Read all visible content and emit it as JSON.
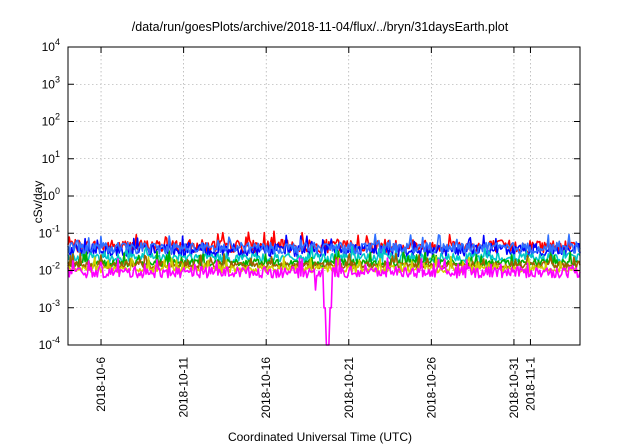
{
  "chart_data": {
    "type": "line",
    "title": "/data/run/goesPlots/archive/2018-11-04/flux/../bryn/31daysEarth.plot",
    "xlabel": "Coordinated Universal Time (UTC)",
    "ylabel": "cSv/day",
    "yscale": "log",
    "ylim": [
      0.0001,
      10000
    ],
    "yticks": [
      {
        "value": 0.0001,
        "base": "10",
        "exp": "-4"
      },
      {
        "value": 0.001,
        "base": "10",
        "exp": "-3"
      },
      {
        "value": 0.01,
        "base": "10",
        "exp": "-2"
      },
      {
        "value": 0.1,
        "base": "10",
        "exp": "-1"
      },
      {
        "value": 1,
        "base": "10",
        "exp": "0"
      },
      {
        "value": 10,
        "base": "10",
        "exp": "1"
      },
      {
        "value": 100,
        "base": "10",
        "exp": "2"
      },
      {
        "value": 1000,
        "base": "10",
        "exp": "3"
      },
      {
        "value": 10000,
        "base": "10",
        "exp": "4"
      }
    ],
    "xlim": [
      "2018-10-04",
      "2018-11-04"
    ],
    "xticks": [
      "2018-10-6",
      "2018-10-11",
      "2018-10-16",
      "2018-10-21",
      "2018-10-26",
      "2018-10-31",
      "2018-11-1"
    ],
    "grid": true,
    "series": [
      {
        "color": "#ff0000",
        "typical": 0.045,
        "spread": 0.35
      },
      {
        "color": "#0000ff",
        "typical": 0.035,
        "spread": 0.35
      },
      {
        "color": "#00c8c8",
        "typical": 0.022,
        "spread": 0.25
      },
      {
        "color": "#00b000",
        "typical": 0.016,
        "spread": 0.2
      },
      {
        "color": "#a06000",
        "typical": 0.014,
        "spread": 0.2
      },
      {
        "color": "#d0d000",
        "typical": 0.011,
        "spread": 0.2
      },
      {
        "color": "#3070ff",
        "typical": 0.04,
        "spread": 0.3
      },
      {
        "color": "#ff00ff",
        "typical": 0.009,
        "spread": 0.3
      }
    ],
    "annotations": [
      {
        "x": "2018-10-19",
        "y": 0.0001,
        "note": "magenta dip"
      }
    ]
  }
}
